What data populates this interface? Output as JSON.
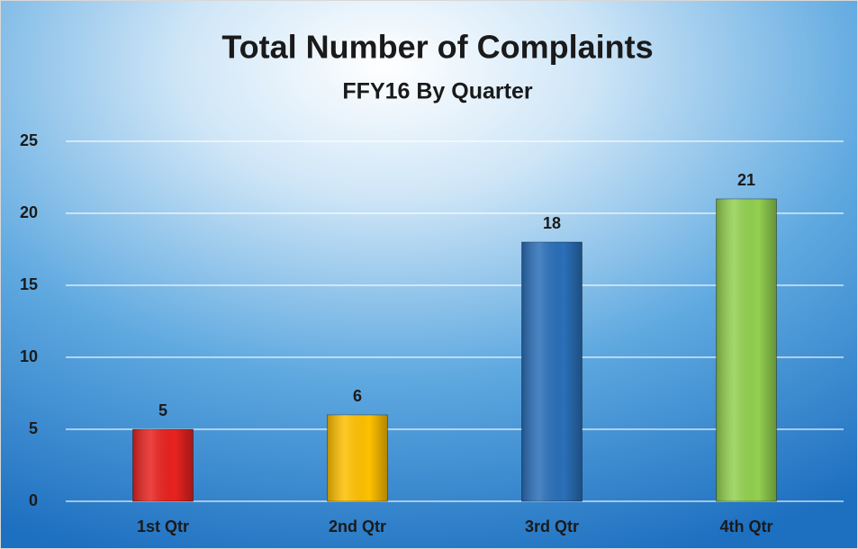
{
  "chart_data": {
    "type": "bar",
    "title": "Total Number of Complaints",
    "subtitle": "FFY16 By Quarter",
    "categories": [
      "1st Qtr",
      "2nd Qtr",
      "3rd Qtr",
      "4th Qtr"
    ],
    "values": [
      5,
      6,
      18,
      21
    ],
    "colors": [
      "#e8231f",
      "#ffc000",
      "#2a6fb8",
      "#92d050"
    ],
    "ylim": [
      0,
      25
    ],
    "yticks": [
      0,
      5,
      10,
      15,
      20,
      25
    ],
    "grid": true,
    "data_labels": true
  }
}
